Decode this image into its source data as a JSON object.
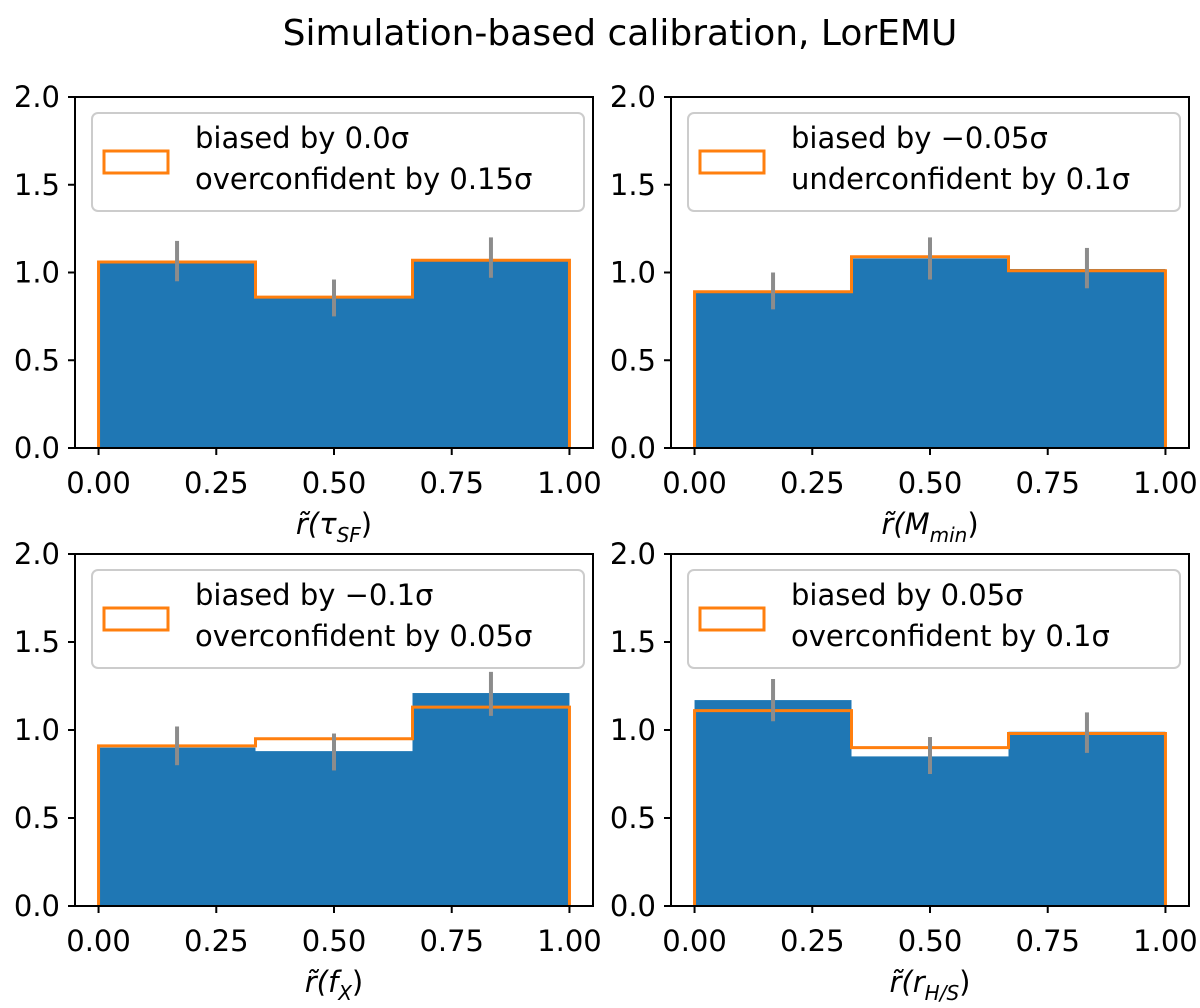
{
  "figure_title": "Simulation-based calibration, LorEMU",
  "chart_data": [
    {
      "type": "bar",
      "panel": "top-left",
      "bins": [
        [
          0,
          0.3333
        ],
        [
          0.3333,
          0.6667
        ],
        [
          0.6667,
          1.0
        ]
      ],
      "series": [
        {
          "kind": "histogram",
          "values": [
            1.06,
            0.86,
            1.07
          ]
        },
        {
          "kind": "step",
          "values": [
            1.06,
            0.86,
            1.07
          ]
        }
      ],
      "errorbars": {
        "x": [
          0.1667,
          0.5,
          0.8333
        ],
        "low": [
          0.95,
          0.75,
          0.97
        ],
        "high": [
          1.18,
          0.96,
          1.2
        ]
      },
      "xlim": [
        -0.05,
        1.05
      ],
      "ylim": [
        0,
        2
      ],
      "xticks": [
        "0.00",
        "0.25",
        "0.50",
        "0.75",
        "1.00"
      ],
      "yticks": [
        "0.0",
        "0.5",
        "1.0",
        "1.5",
        "2.0"
      ],
      "xlabel": {
        "main": "r̃(τ",
        "sub": "SF",
        "close": ")"
      },
      "legend": {
        "line1": "biased by 0.0σ",
        "line2": "overconfident by 0.15σ",
        "placement": "upper-left"
      },
      "colors": {
        "bar": "#1f77b4",
        "step": "#ff7f0e",
        "error": "#8c8c8c"
      }
    },
    {
      "type": "bar",
      "panel": "top-right",
      "bins": [
        [
          0,
          0.3333
        ],
        [
          0.3333,
          0.6667
        ],
        [
          0.6667,
          1.0
        ]
      ],
      "series": [
        {
          "kind": "histogram",
          "values": [
            0.89,
            1.08,
            1.02
          ]
        },
        {
          "kind": "step",
          "values": [
            0.89,
            1.09,
            1.01
          ]
        }
      ],
      "errorbars": {
        "x": [
          0.1667,
          0.5,
          0.8333
        ],
        "low": [
          0.79,
          0.96,
          0.91
        ],
        "high": [
          1.0,
          1.2,
          1.14
        ]
      },
      "xlim": [
        -0.05,
        1.05
      ],
      "ylim": [
        0,
        2
      ],
      "xticks": [
        "0.00",
        "0.25",
        "0.50",
        "0.75",
        "1.00"
      ],
      "yticks": [
        "0.0",
        "0.5",
        "1.0",
        "1.5",
        "2.0"
      ],
      "xlabel": {
        "main": "r̃(M",
        "sub": "min",
        "close": ")"
      },
      "legend": {
        "line1": "biased by −0.05σ",
        "line2": "underconfident by 0.1σ",
        "placement": "upper-left"
      },
      "colors": {
        "bar": "#1f77b4",
        "step": "#ff7f0e",
        "error": "#8c8c8c"
      }
    },
    {
      "type": "bar",
      "panel": "bottom-left",
      "bins": [
        [
          0,
          0.3333
        ],
        [
          0.3333,
          0.6667
        ],
        [
          0.6667,
          1.0
        ]
      ],
      "series": [
        {
          "kind": "histogram",
          "values": [
            0.9,
            0.88,
            1.21
          ]
        },
        {
          "kind": "step",
          "values": [
            0.91,
            0.95,
            1.13
          ]
        }
      ],
      "errorbars": {
        "x": [
          0.1667,
          0.5,
          0.8333
        ],
        "low": [
          0.8,
          0.77,
          1.08
        ],
        "high": [
          1.02,
          0.98,
          1.33
        ]
      },
      "xlim": [
        -0.05,
        1.05
      ],
      "ylim": [
        0,
        2
      ],
      "xticks": [
        "0.00",
        "0.25",
        "0.50",
        "0.75",
        "1.00"
      ],
      "yticks": [
        "0.0",
        "0.5",
        "1.0",
        "1.5",
        "2.0"
      ],
      "xlabel": {
        "main": "r̃(f",
        "sub": "X",
        "close": ")"
      },
      "legend": {
        "line1": "biased by −0.1σ",
        "line2": "overconfident by 0.05σ",
        "placement": "upper-left"
      },
      "colors": {
        "bar": "#1f77b4",
        "step": "#ff7f0e",
        "error": "#8c8c8c"
      }
    },
    {
      "type": "bar",
      "panel": "bottom-right",
      "bins": [
        [
          0,
          0.3333
        ],
        [
          0.3333,
          0.6667
        ],
        [
          0.6667,
          1.0
        ]
      ],
      "series": [
        {
          "kind": "histogram",
          "values": [
            1.17,
            0.85,
            0.99
          ]
        },
        {
          "kind": "step",
          "values": [
            1.11,
            0.9,
            0.98
          ]
        }
      ],
      "errorbars": {
        "x": [
          0.1667,
          0.5,
          0.8333
        ],
        "low": [
          1.05,
          0.75,
          0.87
        ],
        "high": [
          1.29,
          0.96,
          1.1
        ]
      },
      "xlim": [
        -0.05,
        1.05
      ],
      "ylim": [
        0,
        2
      ],
      "xticks": [
        "0.00",
        "0.25",
        "0.50",
        "0.75",
        "1.00"
      ],
      "yticks": [
        "0.0",
        "0.5",
        "1.0",
        "1.5",
        "2.0"
      ],
      "xlabel": {
        "main": "r̃(r",
        "sub": "H/S",
        "close": ")"
      },
      "legend": {
        "line1": "biased by 0.05σ",
        "line2": "overconfident by 0.1σ",
        "placement": "upper-left"
      },
      "colors": {
        "bar": "#1f77b4",
        "step": "#ff7f0e",
        "error": "#8c8c8c"
      }
    }
  ]
}
